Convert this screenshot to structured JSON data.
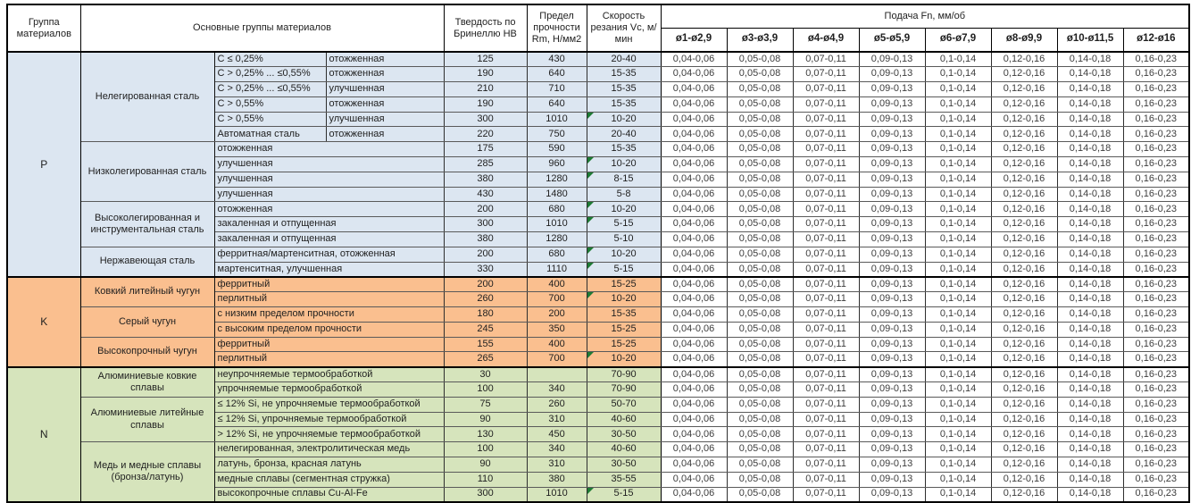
{
  "table": {
    "header": {
      "group": "Группа материалов",
      "materials": "Основные группы материалов",
      "hardness": "Твердость по Бринеллю HB",
      "strength": "Предел прочности Rm, Н/мм2",
      "speed": "Скорость резания Vc, м/мин",
      "feed_title": "Подача Fn, мм/об",
      "feed_columns": [
        "ø1-ø2,9",
        "ø3-ø3,9",
        "ø4-ø4,9",
        "ø5-ø5,9",
        "ø6-ø7,9",
        "ø8-ø9,9",
        "ø10-ø11,5",
        "ø12-ø16"
      ]
    },
    "feed_values": [
      "0,04-0,06",
      "0,05-0,08",
      "0,07-0,11",
      "0,09-0,13",
      "0,1-0,14",
      "0,12-0,16",
      "0,14-0,18",
      "0,16-0,23"
    ],
    "colors": {
      "P": "#dce6f1",
      "K": "#fabf8f",
      "N": "#d6e4bc",
      "marker": "#1e7b34"
    },
    "groups": [
      {
        "letter": "P",
        "subgroups": [
          {
            "name": "Нелегированная сталь",
            "rows": [
              {
                "cond": "C ≤ 0,25%",
                "state": "отожженная",
                "hb": "125",
                "rm": "430",
                "vc": "20-40",
                "marker": false
              },
              {
                "cond": "C > 0,25% ... ≤0,55%",
                "state": "отожженная",
                "hb": "190",
                "rm": "640",
                "vc": "15-35",
                "marker": false
              },
              {
                "cond": "C > 0,25% ... ≤0,55%",
                "state": "улучшенная",
                "hb": "210",
                "rm": "710",
                "vc": "15-35",
                "marker": false
              },
              {
                "cond": "C > 0,55%",
                "state": "отожженная",
                "hb": "190",
                "rm": "640",
                "vc": "15-35",
                "marker": false
              },
              {
                "cond": "C > 0,55%",
                "state": "улучшенная",
                "hb": "300",
                "rm": "1010",
                "vc": "10-20",
                "marker": true
              },
              {
                "cond": "Автоматная сталь",
                "state": "отожженная",
                "hb": "220",
                "rm": "750",
                "vc": "20-40",
                "marker": false
              }
            ]
          },
          {
            "name": "Низколегированная сталь",
            "rows": [
              {
                "desc": "отожженная",
                "hb": "175",
                "rm": "590",
                "vc": "15-35",
                "marker": false
              },
              {
                "desc": "улучшенная",
                "hb": "285",
                "rm": "960",
                "vc": "10-20",
                "marker": true
              },
              {
                "desc": "улучшенная",
                "hb": "380",
                "rm": "1280",
                "vc": "8-15",
                "marker": true
              },
              {
                "desc": "улучшенная",
                "hb": "430",
                "rm": "1480",
                "vc": "5-8",
                "marker": false
              }
            ]
          },
          {
            "name": "Высоколегированная и инструментальная сталь",
            "rows": [
              {
                "desc": "отожженная",
                "hb": "200",
                "rm": "680",
                "vc": "10-20",
                "marker": true
              },
              {
                "desc": "закаленная и отпущенная",
                "hb": "300",
                "rm": "1010",
                "vc": "5-15",
                "marker": true
              },
              {
                "desc": "закаленная и отпущенная",
                "hb": "380",
                "rm": "1280",
                "vc": "5-10",
                "marker": false
              }
            ]
          },
          {
            "name": "Нержавеющая сталь",
            "rows": [
              {
                "desc": "ферритная/мартенситная, отожженная",
                "hb": "200",
                "rm": "680",
                "vc": "10-20",
                "marker": true
              },
              {
                "desc": "мартенситная, улучшенная",
                "hb": "330",
                "rm": "1110",
                "vc": "5-15",
                "marker": true
              }
            ]
          }
        ]
      },
      {
        "letter": "K",
        "subgroups": [
          {
            "name": "Ковкий литейный чугун",
            "rows": [
              {
                "desc": "ферритный",
                "hb": "200",
                "rm": "400",
                "vc": "15-25",
                "marker": false
              },
              {
                "desc": "перлитный",
                "hb": "260",
                "rm": "700",
                "vc": "10-20",
                "marker": true
              }
            ]
          },
          {
            "name": "Серый чугун",
            "rows": [
              {
                "desc": "с низким пределом прочности",
                "hb": "180",
                "rm": "200",
                "vc": "15-35",
                "marker": false
              },
              {
                "desc": "с высоким пределом прочности",
                "hb": "245",
                "rm": "350",
                "vc": "15-25",
                "marker": false
              }
            ]
          },
          {
            "name": "Высокопрочный чугун",
            "rows": [
              {
                "desc": "ферритный",
                "hb": "155",
                "rm": "400",
                "vc": "15-25",
                "marker": false
              },
              {
                "desc": "перлитный",
                "hb": "265",
                "rm": "700",
                "vc": "10-20",
                "marker": true
              }
            ]
          }
        ]
      },
      {
        "letter": "N",
        "subgroups": [
          {
            "name": "Алюминиевые ковкие сплавы",
            "rows": [
              {
                "desc": "неупрочняемые термообработкой",
                "hb": "30",
                "rm": "",
                "vc": "70-90",
                "marker": false
              },
              {
                "desc": "упрочняемые термообработкой",
                "hb": "100",
                "rm": "340",
                "vc": "70-90",
                "marker": false
              }
            ]
          },
          {
            "name": "Алюминиевые литейные сплавы",
            "rows": [
              {
                "desc": "≤ 12% Si, не упрочняемые термообработкой",
                "hb": "75",
                "rm": "260",
                "vc": "50-70",
                "marker": false
              },
              {
                "desc": "≤ 12% Si, упрочняемые термообработкой",
                "hb": "90",
                "rm": "310",
                "vc": "40-60",
                "marker": false
              },
              {
                "desc": "> 12% Si, не упрочняемые термообработкой",
                "hb": "130",
                "rm": "450",
                "vc": "30-50",
                "marker": false
              }
            ]
          },
          {
            "name": "Медь и медные сплавы (бронза/латунь)",
            "rows": [
              {
                "desc": "нелегированная, электролитическая медь",
                "hb": "100",
                "rm": "340",
                "vc": "40-60",
                "marker": false
              },
              {
                "desc": "латунь, бронза, красная латунь",
                "hb": "90",
                "rm": "310",
                "vc": "30-50",
                "marker": false
              },
              {
                "desc": "медные сплавы (сегментная стружка)",
                "hb": "110",
                "rm": "380",
                "vc": "35-55",
                "marker": false
              },
              {
                "desc": "высокопрочные сплавы Cu-Al-Fe",
                "hb": "300",
                "rm": "1010",
                "vc": "5-15",
                "marker": true
              }
            ]
          }
        ]
      }
    ]
  }
}
